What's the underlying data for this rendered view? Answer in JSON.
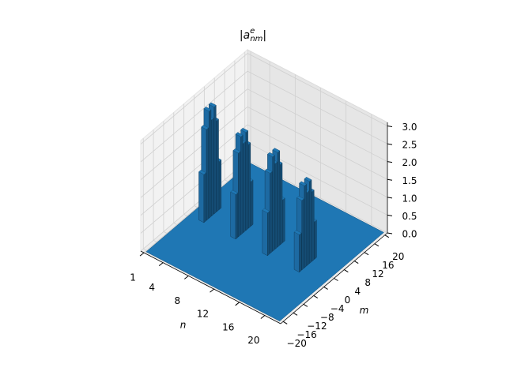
{
  "chart_data": {
    "type": "bar3d",
    "title": [
      "|",
      "a",
      "e",
      "nm",
      "|"
    ],
    "xlabel": "n",
    "ylabel": "m",
    "xlim": [
      0.5,
      22.5
    ],
    "ylim": [
      -21,
      21
    ],
    "zlim": [
      0,
      3.1
    ],
    "xticks": [
      1,
      4,
      8,
      12,
      16,
      20
    ],
    "yticks": [
      {
        "value": -20,
        "label": "−20"
      },
      {
        "value": -16,
        "label": "−16"
      },
      {
        "value": -12,
        "label": "−12"
      },
      {
        "value": -8,
        "label": "−8"
      },
      {
        "value": -4,
        "label": "−4"
      },
      0,
      4,
      8,
      12,
      16,
      20
    ],
    "zticks": [
      {
        "value": 0,
        "label": "0.0"
      },
      0.5,
      {
        "value": 1,
        "label": "1.0"
      },
      1.5,
      {
        "value": 2,
        "label": "2.0"
      },
      2.5,
      {
        "value": 3,
        "label": "3.0"
      }
    ],
    "grid": true,
    "color": "#1f77b4",
    "bars": [
      {
        "n": 3,
        "m": -3,
        "value": 1.35
      },
      {
        "n": 3,
        "m": -2,
        "value": 2.55
      },
      {
        "n": 3,
        "m": -1,
        "value": 3.0
      },
      {
        "n": 3,
        "m": 0,
        "value": 2.7
      },
      {
        "n": 3,
        "m": 1,
        "value": 3.0
      },
      {
        "n": 3,
        "m": 2,
        "value": 2.55
      },
      {
        "n": 3,
        "m": 3,
        "value": 1.35
      },
      {
        "n": 8,
        "m": -3,
        "value": 1.25
      },
      {
        "n": 8,
        "m": -2,
        "value": 2.35
      },
      {
        "n": 8,
        "m": -1,
        "value": 2.75
      },
      {
        "n": 8,
        "m": 0,
        "value": 2.5
      },
      {
        "n": 8,
        "m": 1,
        "value": 2.75
      },
      {
        "n": 8,
        "m": 2,
        "value": 2.35
      },
      {
        "n": 8,
        "m": 3,
        "value": 1.25
      },
      {
        "n": 13,
        "m": -3,
        "value": 1.2
      },
      {
        "n": 13,
        "m": -2,
        "value": 2.25
      },
      {
        "n": 13,
        "m": -1,
        "value": 2.65
      },
      {
        "n": 13,
        "m": 0,
        "value": 2.4
      },
      {
        "n": 13,
        "m": 1,
        "value": 2.65
      },
      {
        "n": 13,
        "m": 2,
        "value": 2.25
      },
      {
        "n": 13,
        "m": 3,
        "value": 1.2
      },
      {
        "n": 18,
        "m": -3,
        "value": 1.05
      },
      {
        "n": 18,
        "m": -2,
        "value": 1.95
      },
      {
        "n": 18,
        "m": -1,
        "value": 2.3
      },
      {
        "n": 18,
        "m": 0,
        "value": 2.05
      },
      {
        "n": 18,
        "m": 1,
        "value": 2.3
      },
      {
        "n": 18,
        "m": 2,
        "value": 1.95
      },
      {
        "n": 18,
        "m": 3,
        "value": 1.05
      }
    ]
  }
}
